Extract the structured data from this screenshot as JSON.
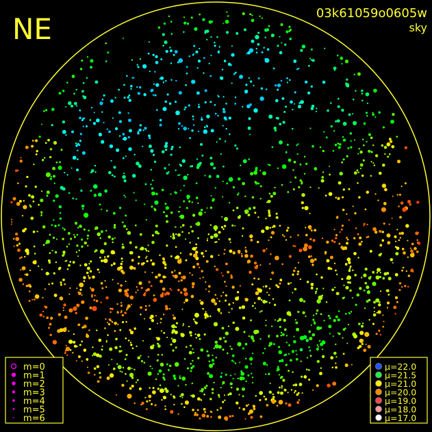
{
  "header": {
    "corner": "NE",
    "frame_id": "03k61059o0605w",
    "kind": "sky"
  },
  "magnitude_legend": {
    "color": "#ff00ff",
    "items": [
      {
        "label": "m=0"
      },
      {
        "label": "m=1"
      },
      {
        "label": "m=2"
      },
      {
        "label": "m=3"
      },
      {
        "label": "m=4"
      },
      {
        "label": "m=5"
      },
      {
        "label": "m=6"
      }
    ]
  },
  "brightness_legend": {
    "items": [
      {
        "label": "μ=22.0",
        "color": "#2255ff"
      },
      {
        "label": "μ=21.5",
        "color": "#22ee44"
      },
      {
        "label": "μ=21.0",
        "color": "#ffee00"
      },
      {
        "label": "μ=20.0",
        "color": "#ff8800"
      },
      {
        "label": "μ=19.0",
        "color": "#ff4444"
      },
      {
        "label": "μ=18.0",
        "color": "#ff9999"
      },
      {
        "label": "μ=17.0",
        "color": "#ffffff"
      }
    ]
  }
}
